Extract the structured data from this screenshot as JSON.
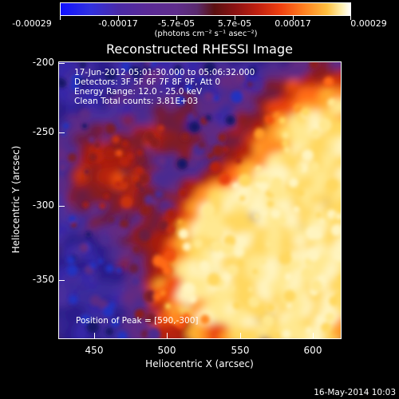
{
  "colorbar": {
    "tick_labels": [
      "-0.00029",
      "-0.00017",
      "-5.7e-05",
      "5.7e-05",
      "0.00017",
      "0.00029"
    ],
    "unit": "(photons cm⁻² s⁻¹ asec⁻²)"
  },
  "title": "Reconstructed RHESSI Image",
  "info": {
    "time": "17-Jun-2012 05:01:30.000 to 05:06:32.000",
    "detectors": "Detectors: 3F 5F 6F 7F 8F 9F, Att 0",
    "energy": "Energy Range: 12.0 - 25.0 keV",
    "method": "Clean    Total counts: 3.81E+03"
  },
  "peak": "Position of Peak = [590,-300]",
  "axes": {
    "xlabel": "Heliocentric X (arcsec)",
    "ylabel": "Heliocentric Y (arcsec)",
    "xticks": [
      "450",
      "500",
      "550",
      "600"
    ],
    "yticks": [
      "-200",
      "-250",
      "-300",
      "-350"
    ]
  },
  "footer": "16-May-2014 10:03"
}
